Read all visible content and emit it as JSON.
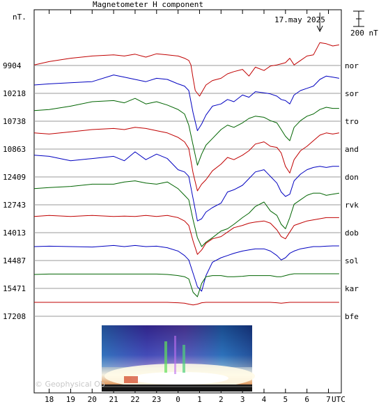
{
  "chart_data": {
    "type": "line",
    "title": "Magnetometer H component",
    "date_label": "17.may 2025",
    "ylabel": "nT.",
    "scale_label": "200 nT",
    "xlabel": "UTC",
    "x_ticks": [
      "18",
      "19",
      "20",
      "21",
      "22",
      "23",
      "0",
      "1",
      "2",
      "3",
      "4",
      "5",
      "6",
      "7"
    ],
    "x_hours": [
      18,
      19,
      20,
      21,
      22,
      23,
      24,
      25,
      26,
      27,
      28,
      29,
      30,
      31
    ],
    "x_range": [
      17.3,
      31.6
    ],
    "grid": true,
    "legend": "right",
    "baseline_unit": "nT",
    "event_time_hours": 30.6,
    "series": [
      {
        "name": "nor",
        "baseline": "9904",
        "color": "#c00000",
        "x": [
          17.3,
          18,
          19,
          20,
          21,
          21.5,
          22,
          22.5,
          23,
          23.5,
          24,
          24.3,
          24.5,
          24.6,
          24.7,
          24.8,
          25,
          25.3,
          25.6,
          26,
          26.3,
          26.6,
          27,
          27.3,
          27.6,
          28,
          28.3,
          28.6,
          28.8,
          29,
          29.2,
          29.4,
          29.7,
          30,
          30.3,
          30.6,
          30.9,
          31.2,
          31.5
        ],
        "y": [
          60,
          45,
          30,
          20,
          15,
          20,
          12,
          25,
          10,
          15,
          20,
          30,
          40,
          60,
          120,
          175,
          200,
          150,
          130,
          120,
          100,
          90,
          80,
          110,
          70,
          85,
          65,
          60,
          55,
          50,
          30,
          60,
          40,
          20,
          15,
          -40,
          -35,
          -25,
          -30
        ]
      },
      {
        "name": "sor",
        "baseline": "10218",
        "color": "#0000c0",
        "x": [
          17.3,
          18,
          19,
          20,
          21,
          21.5,
          22,
          22.5,
          23,
          23.5,
          24,
          24.3,
          24.5,
          24.7,
          24.9,
          25.1,
          25.3,
          25.6,
          26,
          26.3,
          26.6,
          27,
          27.3,
          27.6,
          28,
          28.3,
          28.6,
          28.8,
          29,
          29.2,
          29.4,
          29.7,
          30,
          30.3,
          30.6,
          30.9,
          31.2,
          31.5
        ],
        "y": [
          25,
          20,
          15,
          10,
          -20,
          -10,
          0,
          10,
          -5,
          0,
          20,
          30,
          50,
          150,
          230,
          200,
          160,
          120,
          110,
          90,
          100,
          70,
          80,
          55,
          60,
          65,
          75,
          90,
          95,
          110,
          70,
          50,
          40,
          30,
          0,
          -15,
          -10,
          -5
        ]
      },
      {
        "name": "tro",
        "baseline": "10738",
        "color": "#006400",
        "x": [
          17.3,
          18,
          19,
          20,
          21,
          21.5,
          22,
          22.5,
          23,
          23.5,
          24,
          24.3,
          24.5,
          24.7,
          24.9,
          25.1,
          25.3,
          25.6,
          26,
          26.3,
          26.6,
          27,
          27.3,
          27.6,
          28,
          28.3,
          28.6,
          28.8,
          29,
          29.2,
          29.4,
          29.7,
          30,
          30.3,
          30.6,
          30.9,
          31.2,
          31.5
        ],
        "y": [
          15,
          10,
          -5,
          -25,
          -30,
          -20,
          -40,
          -15,
          -25,
          -10,
          10,
          30,
          80,
          170,
          260,
          210,
          170,
          140,
          100,
          80,
          90,
          70,
          50,
          40,
          45,
          60,
          70,
          100,
          130,
          150,
          90,
          60,
          40,
          30,
          10,
          0,
          5,
          5
        ]
      },
      {
        "name": "and",
        "baseline": "10863",
        "color": "#c00000",
        "x": [
          17.3,
          18,
          19,
          20,
          21,
          21.5,
          22,
          22.5,
          23,
          23.5,
          24,
          24.3,
          24.5,
          24.7,
          24.9,
          25.1,
          25.3,
          25.6,
          26,
          26.3,
          26.6,
          27,
          27.3,
          27.6,
          28,
          28.3,
          28.6,
          28.8,
          29,
          29.2,
          29.4,
          29.7,
          30,
          30.3,
          30.6,
          30.9,
          31.2,
          31.5
        ],
        "y": [
          -10,
          -5,
          -15,
          -25,
          -30,
          -25,
          -35,
          -30,
          -20,
          -10,
          10,
          30,
          60,
          170,
          250,
          220,
          200,
          160,
          130,
          100,
          110,
          90,
          70,
          40,
          30,
          50,
          55,
          80,
          140,
          170,
          110,
          70,
          50,
          25,
          0,
          -10,
          -5,
          -10
        ]
      },
      {
        "name": "don",
        "baseline": "12409",
        "color": "#0000c0",
        "x": [
          17.3,
          18,
          19,
          20,
          21,
          21.5,
          22,
          22.5,
          23,
          23.5,
          24,
          24.3,
          24.5,
          24.7,
          24.9,
          25.1,
          25.3,
          25.6,
          26,
          26.3,
          26.6,
          27,
          27.3,
          27.6,
          28,
          28.3,
          28.6,
          28.8,
          29,
          29.2,
          29.4,
          29.7,
          30,
          30.3,
          30.6,
          30.9,
          31.2,
          31.5
        ],
        "y": [
          -35,
          -30,
          -10,
          -20,
          -30,
          -10,
          -50,
          -15,
          -40,
          -20,
          30,
          40,
          60,
          160,
          260,
          250,
          220,
          200,
          180,
          130,
          120,
          100,
          70,
          40,
          30,
          60,
          90,
          130,
          150,
          140,
          80,
          50,
          30,
          20,
          15,
          20,
          15,
          15
        ]
      },
      {
        "name": "rvk",
        "baseline": "12743",
        "color": "#006400",
        "x": [
          17.3,
          18,
          19,
          20,
          21,
          21.5,
          22,
          22.5,
          23,
          23.5,
          24,
          24.3,
          24.5,
          24.7,
          24.9,
          25.1,
          25.3,
          25.6,
          26,
          26.3,
          26.6,
          27,
          27.3,
          27.6,
          28,
          28.3,
          28.6,
          28.8,
          29,
          29.2,
          29.4,
          29.7,
          30,
          30.3,
          30.6,
          30.9,
          31.2,
          31.5
        ],
        "y": [
          -10,
          -15,
          -20,
          -30,
          -30,
          -40,
          -45,
          -35,
          -30,
          -40,
          -10,
          20,
          40,
          130,
          210,
          250,
          230,
          210,
          180,
          170,
          150,
          120,
          100,
          70,
          50,
          90,
          110,
          150,
          170,
          120,
          60,
          40,
          20,
          10,
          10,
          20,
          15,
          10
        ]
      },
      {
        "name": "dob",
        "baseline": "14013",
        "color": "#c00000",
        "x": [
          17.3,
          18,
          19,
          20,
          21,
          21.5,
          22,
          22.5,
          23,
          23.5,
          24,
          24.3,
          24.5,
          24.7,
          24.9,
          25.1,
          25.3,
          25.6,
          26,
          26.3,
          26.6,
          27,
          27.3,
          27.6,
          28,
          28.3,
          28.6,
          28.8,
          29,
          29.2,
          29.4,
          29.7,
          30,
          30.3,
          30.6,
          30.9,
          31.2,
          31.5
        ],
        "y": [
          -10,
          -15,
          -10,
          -15,
          -10,
          -12,
          -10,
          -15,
          -10,
          -15,
          -5,
          10,
          30,
          100,
          160,
          140,
          110,
          90,
          80,
          60,
          40,
          30,
          20,
          15,
          10,
          20,
          50,
          80,
          90,
          60,
          30,
          20,
          10,
          5,
          0,
          -5,
          -5,
          -5
        ]
      },
      {
        "name": "sol",
        "baseline": "14487",
        "color": "#0000c0",
        "x": [
          17.3,
          18,
          19,
          20,
          21,
          21.5,
          22,
          22.5,
          23,
          23.5,
          24,
          24.3,
          24.5,
          24.7,
          24.9,
          25.1,
          25.3,
          25.6,
          26,
          26.3,
          26.6,
          27,
          27.3,
          27.6,
          28,
          28.3,
          28.6,
          28.8,
          29,
          29.2,
          29.4,
          29.7,
          30,
          30.3,
          30.6,
          30.9,
          31.2,
          31.5
        ],
        "y": [
          0,
          -2,
          0,
          2,
          -5,
          0,
          -5,
          0,
          -2,
          5,
          20,
          40,
          60,
          120,
          180,
          200,
          130,
          70,
          50,
          40,
          30,
          20,
          15,
          10,
          10,
          20,
          40,
          60,
          50,
          30,
          20,
          10,
          5,
          0,
          0,
          -2,
          -3,
          -3
        ]
      },
      {
        "name": "kar",
        "baseline": "15471",
        "color": "#006400",
        "x": [
          17.3,
          18,
          19,
          20,
          21,
          21.5,
          22,
          22.5,
          23,
          23.5,
          24,
          24.3,
          24.5,
          24.7,
          24.9,
          25.1,
          25.3,
          25.6,
          26,
          26.3,
          26.6,
          27,
          27.3,
          27.6,
          28,
          28.3,
          28.6,
          28.8,
          29,
          29.2,
          29.4,
          29.7,
          30,
          30.3,
          30.6,
          30.9,
          31.2,
          31.5
        ],
        "y": [
          0,
          -2,
          -2,
          -2,
          -2,
          -2,
          -2,
          -2,
          -2,
          0,
          5,
          10,
          20,
          80,
          100,
          40,
          10,
          5,
          5,
          10,
          10,
          8,
          5,
          5,
          5,
          5,
          10,
          10,
          5,
          0,
          -3,
          -3,
          -3,
          -3,
          -3,
          -3,
          -3,
          -3
        ]
      },
      {
        "name": "bfe",
        "baseline": "17208",
        "color": "#c00000",
        "x": [
          17.3,
          18,
          19,
          20,
          21,
          21.5,
          22,
          22.5,
          23,
          23.5,
          24,
          24.3,
          24.5,
          24.7,
          24.9,
          25.1,
          25.3,
          25.6,
          26,
          26.3,
          26.6,
          27,
          27.3,
          27.6,
          28,
          28.3,
          28.6,
          28.8,
          29,
          29.2,
          29.4,
          29.7,
          30,
          30.3,
          30.6,
          30.9,
          31.2,
          31.5
        ],
        "y": [
          0,
          0,
          0,
          0,
          0,
          0,
          0,
          0,
          0,
          0,
          2,
          4,
          8,
          12,
          8,
          2,
          0,
          0,
          0,
          0,
          0,
          0,
          0,
          0,
          0,
          0,
          2,
          4,
          2,
          0,
          0,
          0,
          0,
          0,
          0,
          0,
          0,
          0
        ]
      }
    ]
  },
  "footer": {
    "watermark": "© Geophysical Ob"
  },
  "thumbnail": {
    "name": "auroral-sky-image"
  }
}
